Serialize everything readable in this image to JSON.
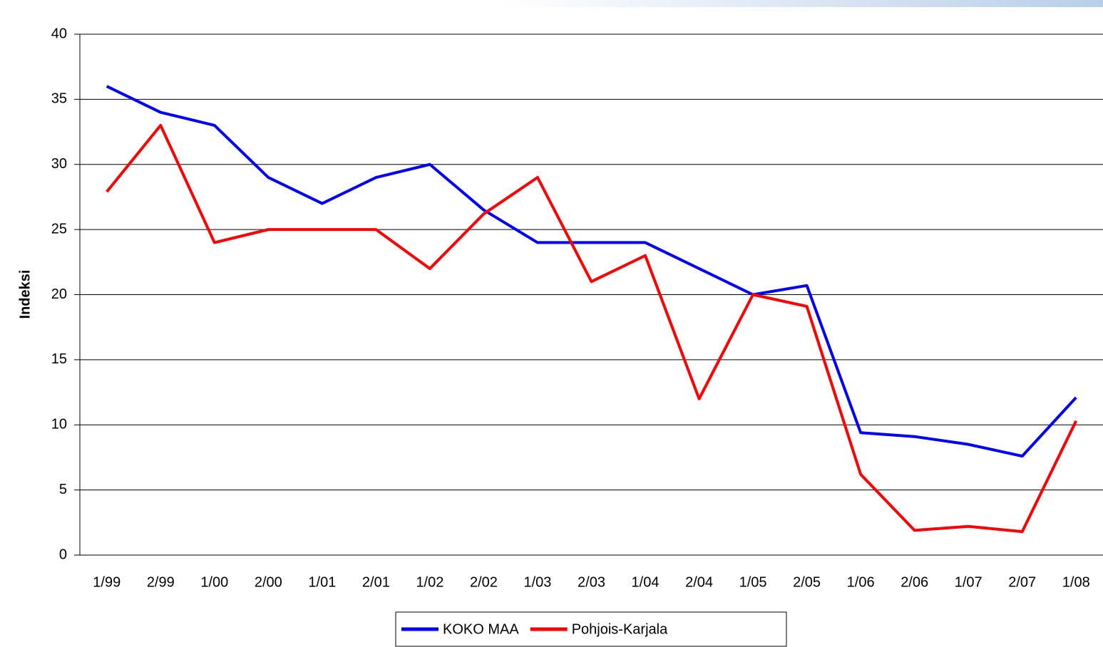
{
  "chart_data": {
    "type": "line",
    "ylabel": "Indeksi",
    "categories": [
      "1/99",
      "2/99",
      "1/00",
      "2/00",
      "1/01",
      "2/01",
      "1/02",
      "2/02",
      "1/03",
      "2/03",
      "1/04",
      "2/04",
      "1/05",
      "2/05",
      "1/06",
      "2/06",
      "1/07",
      "2/07",
      "1/08"
    ],
    "series": [
      {
        "name": "KOKO MAA",
        "color": "#0000ff",
        "values": [
          36,
          34,
          33,
          29,
          27,
          29,
          30,
          26.5,
          24,
          24,
          24,
          22,
          20,
          20.7,
          9.4,
          9.1,
          8.5,
          7.6,
          12.1
        ]
      },
      {
        "name": "Pohjois-Karjala",
        "color": "#ff0000",
        "values": [
          27.9,
          33,
          24,
          25,
          25,
          25,
          22,
          26.2,
          29,
          21,
          23,
          12,
          20,
          19.1,
          6.2,
          1.9,
          2.2,
          1.8,
          10.3
        ]
      }
    ],
    "ylim": [
      0,
      40
    ],
    "yticks": [
      0,
      5,
      10,
      15,
      20,
      25,
      30,
      35,
      40
    ],
    "grid": true,
    "legend": "bottom"
  }
}
